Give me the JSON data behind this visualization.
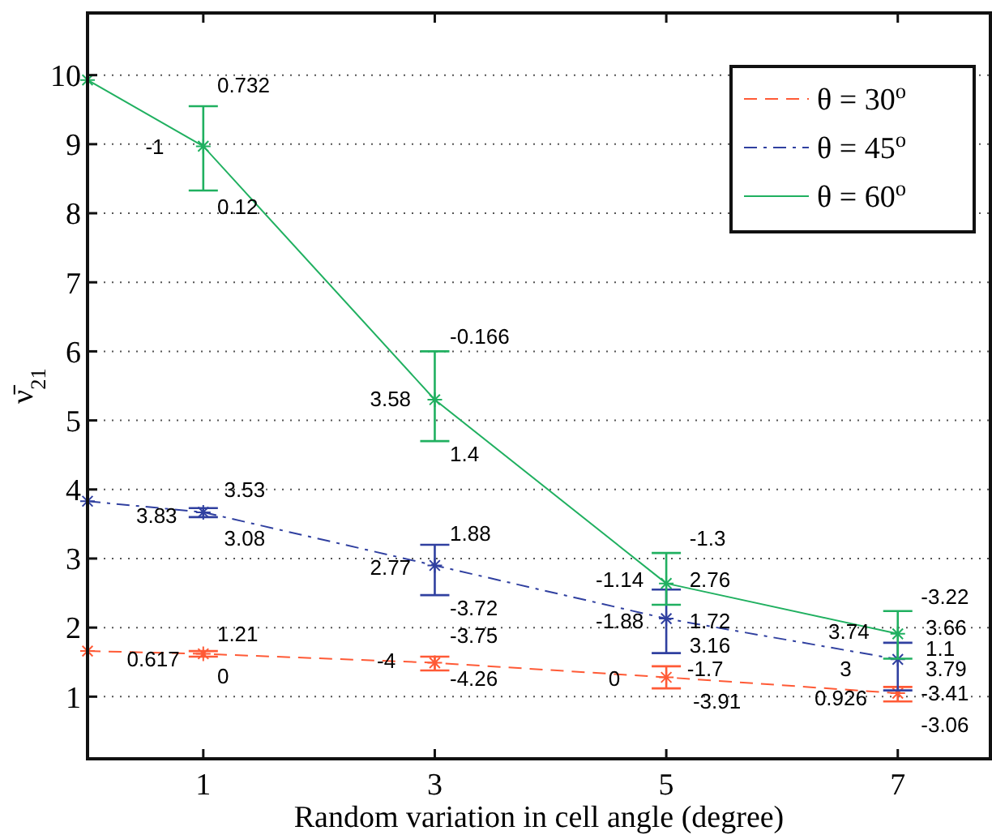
{
  "chart_data": {
    "type": "line",
    "xlabel": "Random variation in cell angle (degree)",
    "ylabel": "ν̄$_{21}$",
    "x": [
      0,
      1,
      3,
      5,
      7
    ],
    "xlim": [
      0,
      7.8
    ],
    "ylim": [
      0.1,
      10.9
    ],
    "xticks": [
      1,
      3,
      5,
      7
    ],
    "yticks": [
      1,
      2,
      3,
      4,
      5,
      6,
      7,
      8,
      9,
      10
    ],
    "grid": "y",
    "legend": "top right",
    "marker": "cross",
    "series": [
      {
        "name": "θ = 30$^{o}$",
        "color": "#ff5a36",
        "line_style": "dashed",
        "values": [
          1.66,
          1.62,
          1.49,
          1.28,
          1.05
        ],
        "errors": [
          null,
          [
            1.58,
            1.66
          ],
          [
            1.38,
            1.58
          ],
          [
            1.12,
            1.44
          ],
          [
            0.93,
            1.14
          ]
        ]
      },
      {
        "name": "θ = 45$^{o}$",
        "color": "#3040a0",
        "line_style": "dashdot",
        "values": [
          3.83,
          3.67,
          2.9,
          2.13,
          1.54
        ],
        "errors": [
          null,
          [
            3.6,
            3.73
          ],
          [
            2.47,
            3.2
          ],
          [
            1.63,
            2.55
          ],
          [
            1.09,
            1.78
          ]
        ]
      },
      {
        "name": "θ = 60$^{o}$",
        "color": "#20b060",
        "line_style": "solid",
        "values": [
          9.93,
          8.97,
          5.3,
          2.64,
          1.91
        ],
        "errors": [
          null,
          [
            8.33,
            9.55
          ],
          [
            4.7,
            6.0
          ],
          [
            2.33,
            3.08
          ],
          [
            1.55,
            2.24
          ]
        ]
      }
    ],
    "annotations": [
      "0.732",
      "-1",
      "0.12",
      "-0.166",
      "3.58",
      "1.4",
      "3.53",
      "3.83",
      "3.08",
      "1.88",
      "2.77",
      "-3.72",
      "1.21",
      "0.617",
      "0",
      "-3.75",
      "-4",
      "-4.26",
      "-1.3",
      "-1.14",
      "2.76",
      "-1.88",
      "1.72",
      "3.16",
      "0",
      "-1.7",
      "-3.91",
      "-3.22",
      "3.74",
      "3.66",
      "1.1",
      "3",
      "3.79",
      "0.926",
      "-3.41",
      "-3.06"
    ]
  }
}
